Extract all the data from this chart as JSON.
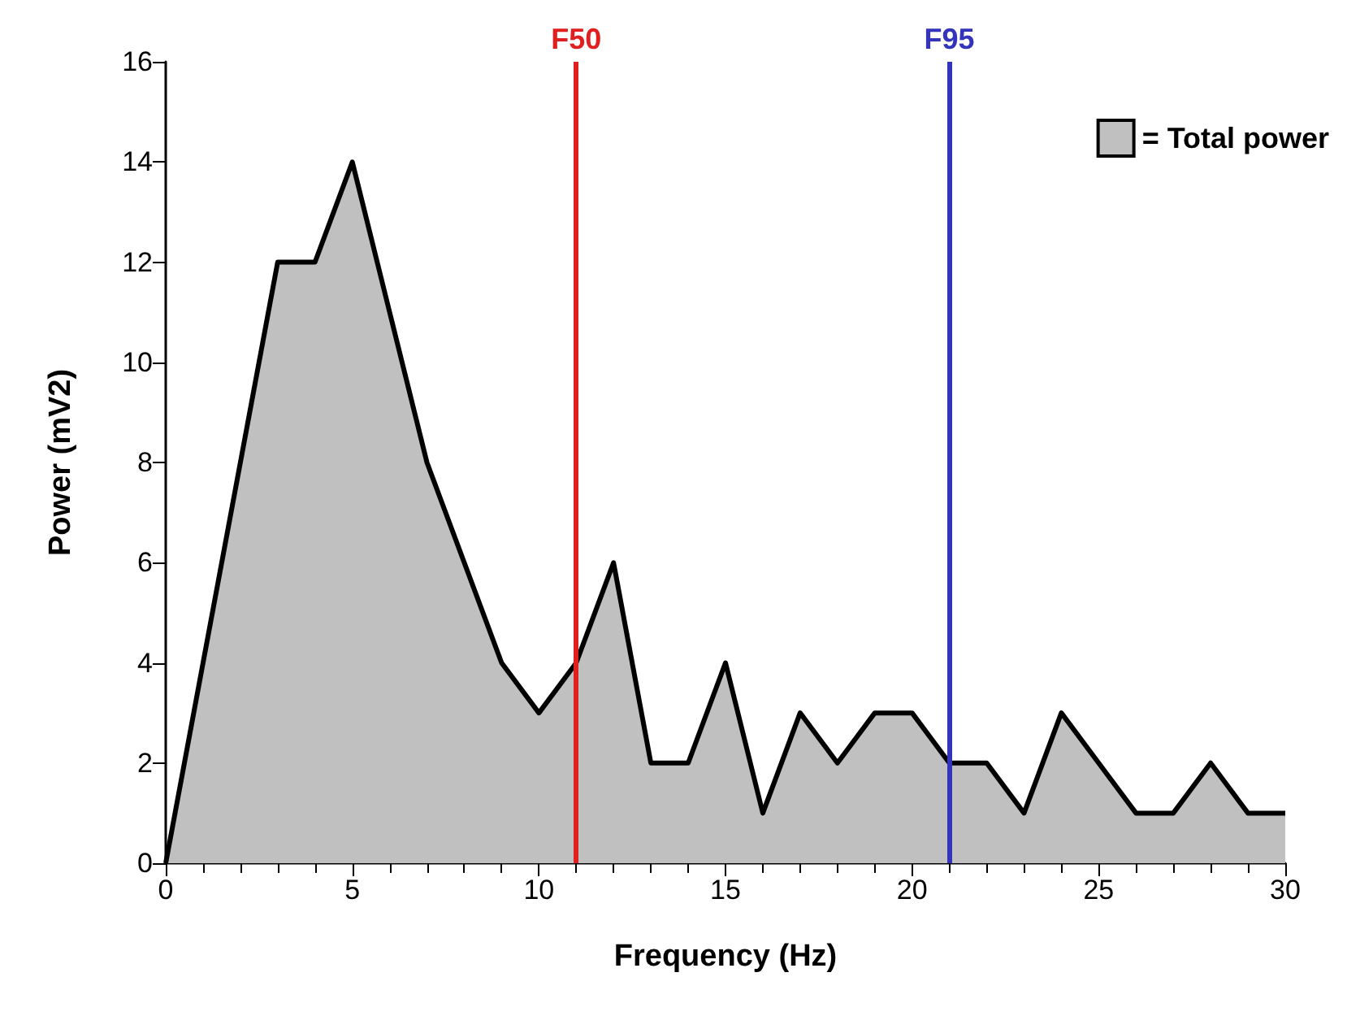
{
  "chart_data": {
    "type": "area",
    "xlabel": "Frequency (Hz)",
    "ylabel": "Power (mV2)",
    "x": [
      0,
      1,
      2,
      3,
      4,
      5,
      6,
      7,
      8,
      9,
      10,
      11,
      12,
      13,
      14,
      15,
      16,
      17,
      18,
      19,
      20,
      21,
      22,
      23,
      24,
      25,
      26,
      27,
      28,
      29,
      30
    ],
    "series": [
      {
        "name": "= Total power",
        "color": "#c0c0c0",
        "values": [
          0,
          4,
          8,
          12,
          12,
          14,
          11,
          8,
          6,
          4,
          3,
          4,
          6,
          2,
          2,
          4,
          1,
          3,
          2,
          3,
          3,
          2,
          2,
          1,
          3,
          2,
          1,
          1,
          2,
          1,
          1
        ]
      }
    ],
    "xlim": [
      0,
      30
    ],
    "xticks": [
      0,
      5,
      10,
      15,
      20,
      25,
      30
    ],
    "ylim": [
      0,
      16
    ],
    "yticks": [
      0,
      2,
      4,
      6,
      8,
      10,
      12,
      14,
      16
    ],
    "ref_lines": [
      {
        "axis": "x",
        "value": 11,
        "label": "F50",
        "color": "#e02020"
      },
      {
        "axis": "x",
        "value": 21,
        "label": "F95",
        "color": "#3333bb"
      }
    ],
    "grid": false,
    "legend": "top right"
  }
}
